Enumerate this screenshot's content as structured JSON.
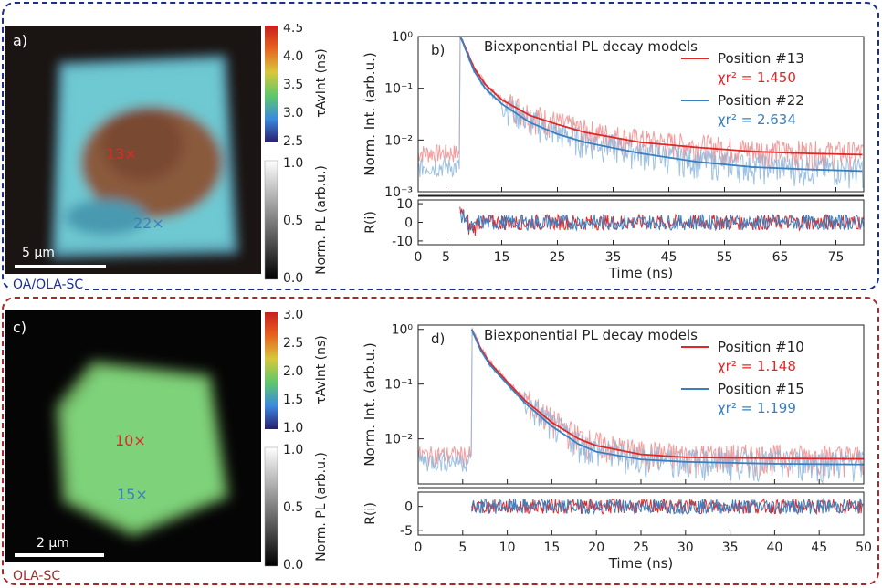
{
  "colors": {
    "frame_top": "#1b2f8c",
    "frame_bottom": "#a52a2a",
    "red": "#e02828",
    "blue": "#3a7fc0",
    "red_noise": "#f08c8c",
    "blue_noise": "#8cb6dc"
  },
  "top": {
    "frame_label": "OA/OLA-SC",
    "image": {
      "panel_label": "a)",
      "scalebar": "5 µm",
      "markers": [
        {
          "text": "13×",
          "color": "#e02828"
        },
        {
          "text": "22×",
          "color": "#3a7fc0"
        }
      ],
      "tau_colorbar": {
        "label": "τAvInt (ns)",
        "ticks": [
          "4.5",
          "4.0",
          "3.5",
          "3.0",
          "2.5"
        ]
      },
      "pl_colorbar": {
        "label": "Norm. PL (arb.u.)",
        "ticks": [
          "1.0",
          "0.5",
          "0.0"
        ]
      }
    }
  },
  "bottom": {
    "frame_label": "OLA-SC",
    "image": {
      "panel_label": "c)",
      "scalebar": "2 µm",
      "markers": [
        {
          "text": "10×",
          "color": "#e02828"
        },
        {
          "text": "15×",
          "color": "#3a7fc0"
        }
      ],
      "tau_colorbar": {
        "label": "τAvInt (ns)",
        "ticks": [
          "3.0",
          "2.5",
          "2.0",
          "1.5",
          "1.0"
        ]
      },
      "pl_colorbar": {
        "label": "Norm. PL (arb.u.)",
        "ticks": [
          "1.0",
          "0.5",
          "0.0"
        ]
      }
    }
  },
  "chart_data": [
    {
      "type": "line",
      "panel_label": "b)",
      "title": "Biexponential PL decay models",
      "xlabel": "Time (ns)",
      "ylabel": "Norm. Int. (arb.u.)",
      "yscale": "log",
      "xlim": [
        0,
        80
      ],
      "ylim": [
        0.001,
        1
      ],
      "xticks": [
        0,
        5,
        15,
        25,
        35,
        45,
        55,
        65,
        75
      ],
      "yticks": [
        "10⁰",
        "10⁻¹",
        "10⁻²",
        "10⁻³"
      ],
      "legend_position": "top-right",
      "series": [
        {
          "name": "Position #13",
          "chi_label": "χr² = 1.450",
          "color": "#e02828",
          "onset": 7.5,
          "floor": 0.0048,
          "x": [
            7.5,
            8,
            10,
            12,
            15,
            20,
            25,
            30,
            40,
            50,
            60,
            70,
            80
          ],
          "y": [
            1.0,
            0.8,
            0.25,
            0.12,
            0.06,
            0.03,
            0.02,
            0.014,
            0.009,
            0.0072,
            0.006,
            0.0055,
            0.0052
          ]
        },
        {
          "name": "Position #22",
          "chi_label": "χr² = 2.634",
          "color": "#3a7fc0",
          "onset": 7.5,
          "floor": 0.0026,
          "x": [
            7.5,
            8,
            10,
            12,
            15,
            20,
            25,
            30,
            40,
            50,
            60,
            70,
            80
          ],
          "y": [
            1.0,
            0.78,
            0.22,
            0.1,
            0.05,
            0.022,
            0.013,
            0.009,
            0.0055,
            0.0038,
            0.003,
            0.0027,
            0.0025
          ]
        }
      ],
      "residuals": {
        "ylabel": "R(i)",
        "ylim": [
          -12,
          12
        ],
        "yticks": [
          10,
          0,
          -10
        ]
      }
    },
    {
      "type": "line",
      "panel_label": "d)",
      "title": "Biexponential PL decay models",
      "xlabel": "Time (ns)",
      "ylabel": "Norm. Int. (arb.u.)",
      "yscale": "log",
      "xlim": [
        0,
        50
      ],
      "ylim": [
        0.0015,
        1.2
      ],
      "xticks": [
        0,
        5,
        10,
        15,
        20,
        25,
        30,
        35,
        40,
        45,
        50
      ],
      "yticks": [
        "10⁰",
        "10⁻¹",
        "10⁻²"
      ],
      "legend_position": "top-right",
      "series": [
        {
          "name": "Position #10",
          "chi_label": "χr² = 1.148",
          "color": "#e02828",
          "onset": 6,
          "x": [
            6,
            7,
            8,
            10,
            12,
            15,
            18,
            20,
            25,
            30,
            40,
            50
          ],
          "y": [
            1.0,
            0.45,
            0.25,
            0.11,
            0.05,
            0.02,
            0.01,
            0.0075,
            0.0052,
            0.0046,
            0.0044,
            0.0043
          ]
        },
        {
          "name": "Position #15",
          "chi_label": "χr² = 1.199",
          "color": "#3a7fc0",
          "onset": 6,
          "x": [
            6,
            7,
            8,
            10,
            12,
            15,
            18,
            20,
            25,
            30,
            40,
            50
          ],
          "y": [
            1.0,
            0.42,
            0.23,
            0.1,
            0.045,
            0.017,
            0.008,
            0.0058,
            0.0042,
            0.0038,
            0.0035,
            0.0034
          ]
        }
      ],
      "residuals": {
        "ylabel": "R(i)",
        "ylim": [
          -6,
          3
        ],
        "yticks": [
          0,
          -5
        ]
      }
    }
  ]
}
